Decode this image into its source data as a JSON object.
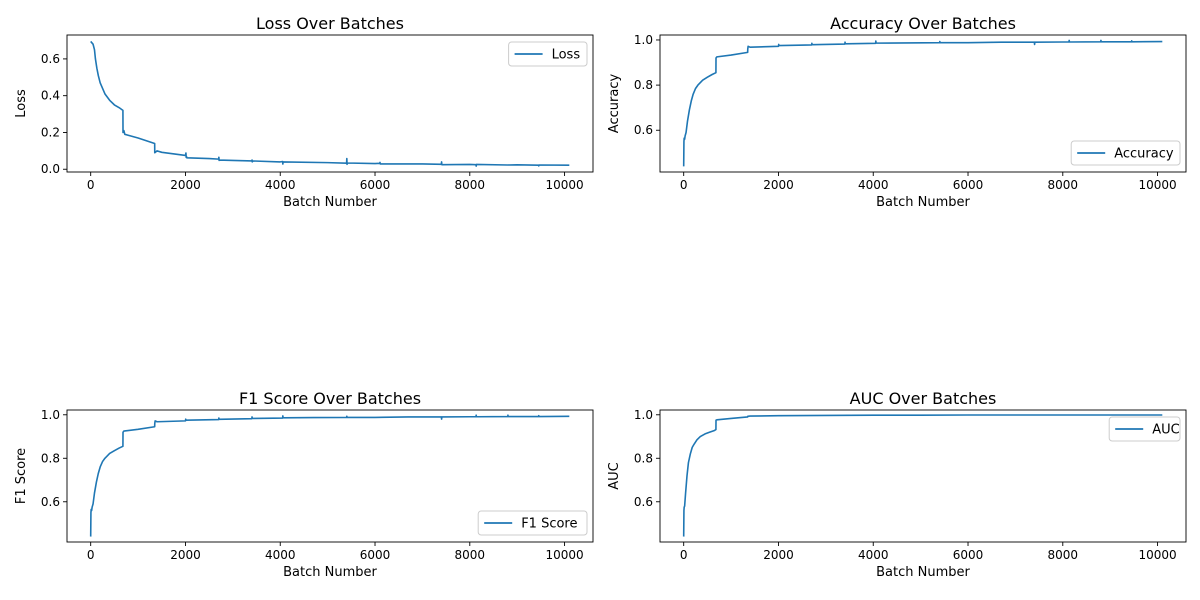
{
  "chart_data": [
    {
      "type": "line",
      "title": "Loss Over Batches",
      "xlabel": "Batch Number",
      "ylabel": "Loss",
      "xlim": [
        -500,
        10600
      ],
      "ylim": [
        -0.015,
        0.73
      ],
      "xticks": [
        0,
        2000,
        4000,
        6000,
        8000,
        10000
      ],
      "xtick_labels": [
        "0",
        "2000",
        "4000",
        "6000",
        "8000",
        "10000"
      ],
      "yticks": [
        0.0,
        0.2,
        0.4,
        0.6
      ],
      "ytick_labels": [
        "0.0",
        "0.2",
        "0.4",
        "0.6"
      ],
      "legend": "top-right",
      "color": "#1f77b4",
      "series": [
        {
          "name": "Loss",
          "x": [
            0,
            50,
            80,
            100,
            130,
            160,
            200,
            250,
            300,
            400,
            500,
            600,
            680,
            682,
            700,
            720,
            1000,
            1350,
            1352,
            1400,
            1500,
            2000,
            2010,
            2015,
            2020,
            2030,
            2500,
            2700,
            2705,
            2710,
            2720,
            3000,
            3400,
            3405,
            3410,
            3420,
            4000,
            4050,
            4055,
            4060,
            4070,
            5000,
            5400,
            5405,
            5410,
            5420,
            6000,
            6100,
            6105,
            6110,
            7000,
            7400,
            7405,
            7410,
            8000,
            8130,
            8135,
            8140,
            8800,
            9000,
            9450,
            9455,
            9460,
            10100
          ],
          "values": [
            0.695,
            0.68,
            0.65,
            0.6,
            0.55,
            0.51,
            0.47,
            0.44,
            0.41,
            0.375,
            0.35,
            0.335,
            0.32,
            0.2,
            0.21,
            0.19,
            0.17,
            0.14,
            0.09,
            0.1,
            0.092,
            0.075,
            0.088,
            0.065,
            0.07,
            0.062,
            0.058,
            0.055,
            0.065,
            0.048,
            0.05,
            0.048,
            0.045,
            0.05,
            0.04,
            0.045,
            0.04,
            0.042,
            0.028,
            0.04,
            0.04,
            0.036,
            0.033,
            0.058,
            0.027,
            0.034,
            0.031,
            0.032,
            0.037,
            0.029,
            0.029,
            0.027,
            0.04,
            0.025,
            0.026,
            0.025,
            0.017,
            0.026,
            0.023,
            0.024,
            0.022,
            0.018,
            0.023,
            0.022
          ]
        }
      ]
    },
    {
      "type": "line",
      "title": "Accuracy Over Batches",
      "xlabel": "Batch Number",
      "ylabel": "Accuracy",
      "xlim": [
        -500,
        10600
      ],
      "ylim": [
        0.415,
        1.022
      ],
      "xticks": [
        0,
        2000,
        4000,
        6000,
        8000,
        10000
      ],
      "xtick_labels": [
        "0",
        "2000",
        "4000",
        "6000",
        "8000",
        "10000"
      ],
      "yticks": [
        0.6,
        0.8,
        1.0
      ],
      "ytick_labels": [
        "0.6",
        "0.8",
        "1.0"
      ],
      "legend": "bottom-right",
      "color": "#1f77b4",
      "series": [
        {
          "name": "Accuracy",
          "x": [
            0,
            5,
            10,
            20,
            30,
            50,
            80,
            120,
            160,
            200,
            250,
            300,
            400,
            500,
            600,
            680,
            682,
            700,
            1000,
            1350,
            1352,
            1360,
            1400,
            2000,
            2005,
            2010,
            2700,
            2705,
            2710,
            3400,
            3405,
            3410,
            4050,
            4055,
            4060,
            4700,
            5400,
            5405,
            5410,
            6000,
            6700,
            7400,
            7405,
            7410,
            8000,
            8130,
            8135,
            8140,
            8800,
            8805,
            8810,
            9450,
            9455,
            9460,
            10100
          ],
          "values": [
            0.44,
            0.55,
            0.565,
            0.56,
            0.575,
            0.59,
            0.64,
            0.69,
            0.73,
            0.76,
            0.785,
            0.8,
            0.822,
            0.835,
            0.847,
            0.855,
            0.92,
            0.925,
            0.933,
            0.945,
            0.96,
            0.972,
            0.968,
            0.972,
            0.98,
            0.975,
            0.978,
            0.985,
            0.979,
            0.982,
            0.99,
            0.983,
            0.985,
            0.995,
            0.986,
            0.987,
            0.988,
            0.993,
            0.988,
            0.988,
            0.99,
            0.99,
            0.98,
            0.99,
            0.991,
            0.991,
            0.998,
            0.991,
            0.992,
            0.998,
            0.992,
            0.992,
            0.996,
            0.992,
            0.993
          ]
        }
      ]
    },
    {
      "type": "line",
      "title": "F1 Score Over Batches",
      "xlabel": "Batch Number",
      "ylabel": "F1 Score",
      "xlim": [
        -500,
        10600
      ],
      "ylim": [
        0.415,
        1.022
      ],
      "xticks": [
        0,
        2000,
        4000,
        6000,
        8000,
        10000
      ],
      "xtick_labels": [
        "0",
        "2000",
        "4000",
        "6000",
        "8000",
        "10000"
      ],
      "yticks": [
        0.6,
        0.8,
        1.0
      ],
      "ytick_labels": [
        "0.6",
        "0.8",
        "1.0"
      ],
      "legend": "bottom-right",
      "color": "#1f77b4",
      "series": [
        {
          "name": "F1 Score",
          "x": [
            0,
            5,
            10,
            20,
            30,
            50,
            80,
            120,
            160,
            200,
            250,
            300,
            400,
            500,
            600,
            680,
            682,
            700,
            1000,
            1350,
            1352,
            1360,
            1400,
            2000,
            2005,
            2010,
            2700,
            2705,
            2710,
            3400,
            3405,
            3410,
            4050,
            4055,
            4060,
            4700,
            5400,
            5405,
            5410,
            6000,
            6700,
            7400,
            7405,
            7410,
            8000,
            8130,
            8135,
            8140,
            8800,
            8805,
            8810,
            9450,
            9455,
            9460,
            10100
          ],
          "values": [
            0.44,
            0.55,
            0.565,
            0.56,
            0.575,
            0.59,
            0.64,
            0.69,
            0.73,
            0.76,
            0.785,
            0.8,
            0.822,
            0.835,
            0.847,
            0.855,
            0.92,
            0.925,
            0.933,
            0.945,
            0.96,
            0.972,
            0.968,
            0.972,
            0.98,
            0.975,
            0.978,
            0.985,
            0.979,
            0.982,
            0.99,
            0.983,
            0.985,
            0.995,
            0.986,
            0.987,
            0.988,
            0.993,
            0.988,
            0.988,
            0.99,
            0.99,
            0.98,
            0.99,
            0.991,
            0.991,
            0.998,
            0.991,
            0.992,
            0.998,
            0.992,
            0.992,
            0.996,
            0.992,
            0.993
          ]
        }
      ]
    },
    {
      "type": "line",
      "title": "AUC Over Batches",
      "xlabel": "Batch Number",
      "ylabel": "AUC",
      "xlim": [
        -500,
        10600
      ],
      "ylim": [
        0.415,
        1.022
      ],
      "xticks": [
        0,
        2000,
        4000,
        6000,
        8000,
        10000
      ],
      "xtick_labels": [
        "0",
        "2000",
        "4000",
        "6000",
        "8000",
        "10000"
      ],
      "yticks": [
        0.6,
        0.8,
        1.0
      ],
      "ytick_labels": [
        "0.6",
        "0.8",
        "1.0"
      ],
      "legend": "top-right",
      "color": "#1f77b4",
      "series": [
        {
          "name": "AUC",
          "x": [
            0,
            5,
            10,
            20,
            40,
            70,
            100,
            140,
            180,
            220,
            280,
            350,
            450,
            550,
            650,
            680,
            682,
            700,
            1000,
            1350,
            1352,
            1400,
            2000,
            3000,
            4000,
            5000,
            6000,
            7000,
            8000,
            9000,
            10100
          ],
          "values": [
            0.44,
            0.56,
            0.575,
            0.58,
            0.64,
            0.72,
            0.78,
            0.82,
            0.85,
            0.865,
            0.885,
            0.9,
            0.912,
            0.92,
            0.928,
            0.932,
            0.975,
            0.977,
            0.983,
            0.99,
            0.993,
            0.994,
            0.996,
            0.997,
            0.998,
            0.998,
            0.999,
            0.999,
            0.999,
            0.999,
            0.999
          ]
        }
      ]
    }
  ]
}
